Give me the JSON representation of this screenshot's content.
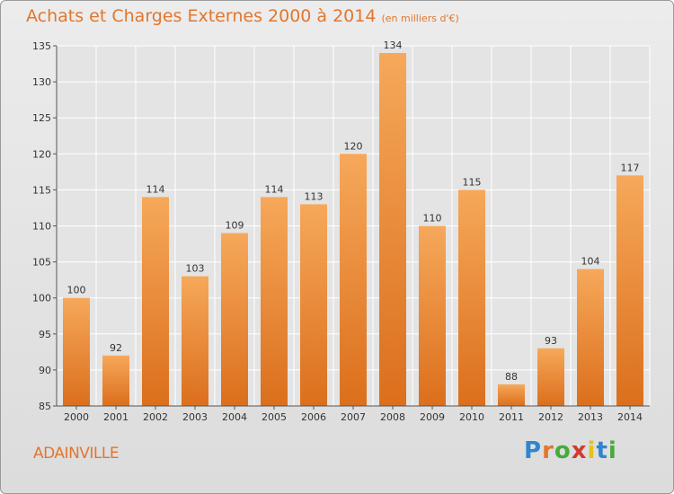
{
  "chart_data": {
    "type": "bar",
    "title": "Achats et Charges Externes 2000 à 2014",
    "subtitle": "(en milliers d'€)",
    "categories": [
      "2000",
      "2001",
      "2002",
      "2003",
      "2004",
      "2005",
      "2006",
      "2007",
      "2008",
      "2009",
      "2010",
      "2011",
      "2012",
      "2013",
      "2014"
    ],
    "values": [
      100,
      92,
      114,
      103,
      109,
      114,
      113,
      120,
      134,
      110,
      115,
      88,
      93,
      104,
      117
    ],
    "ylim": [
      85,
      135
    ],
    "yticks": [
      85,
      90,
      95,
      100,
      105,
      110,
      115,
      120,
      125,
      130,
      135
    ],
    "xlabel": "",
    "ylabel": "",
    "grid": true,
    "bar_color": "#f07e26",
    "bar_highlight_color": "#f6a85a"
  },
  "footer": {
    "commune": "ADAINVILLE",
    "brand": "Proxiti"
  },
  "colors": {
    "accent": "#e2762e"
  }
}
